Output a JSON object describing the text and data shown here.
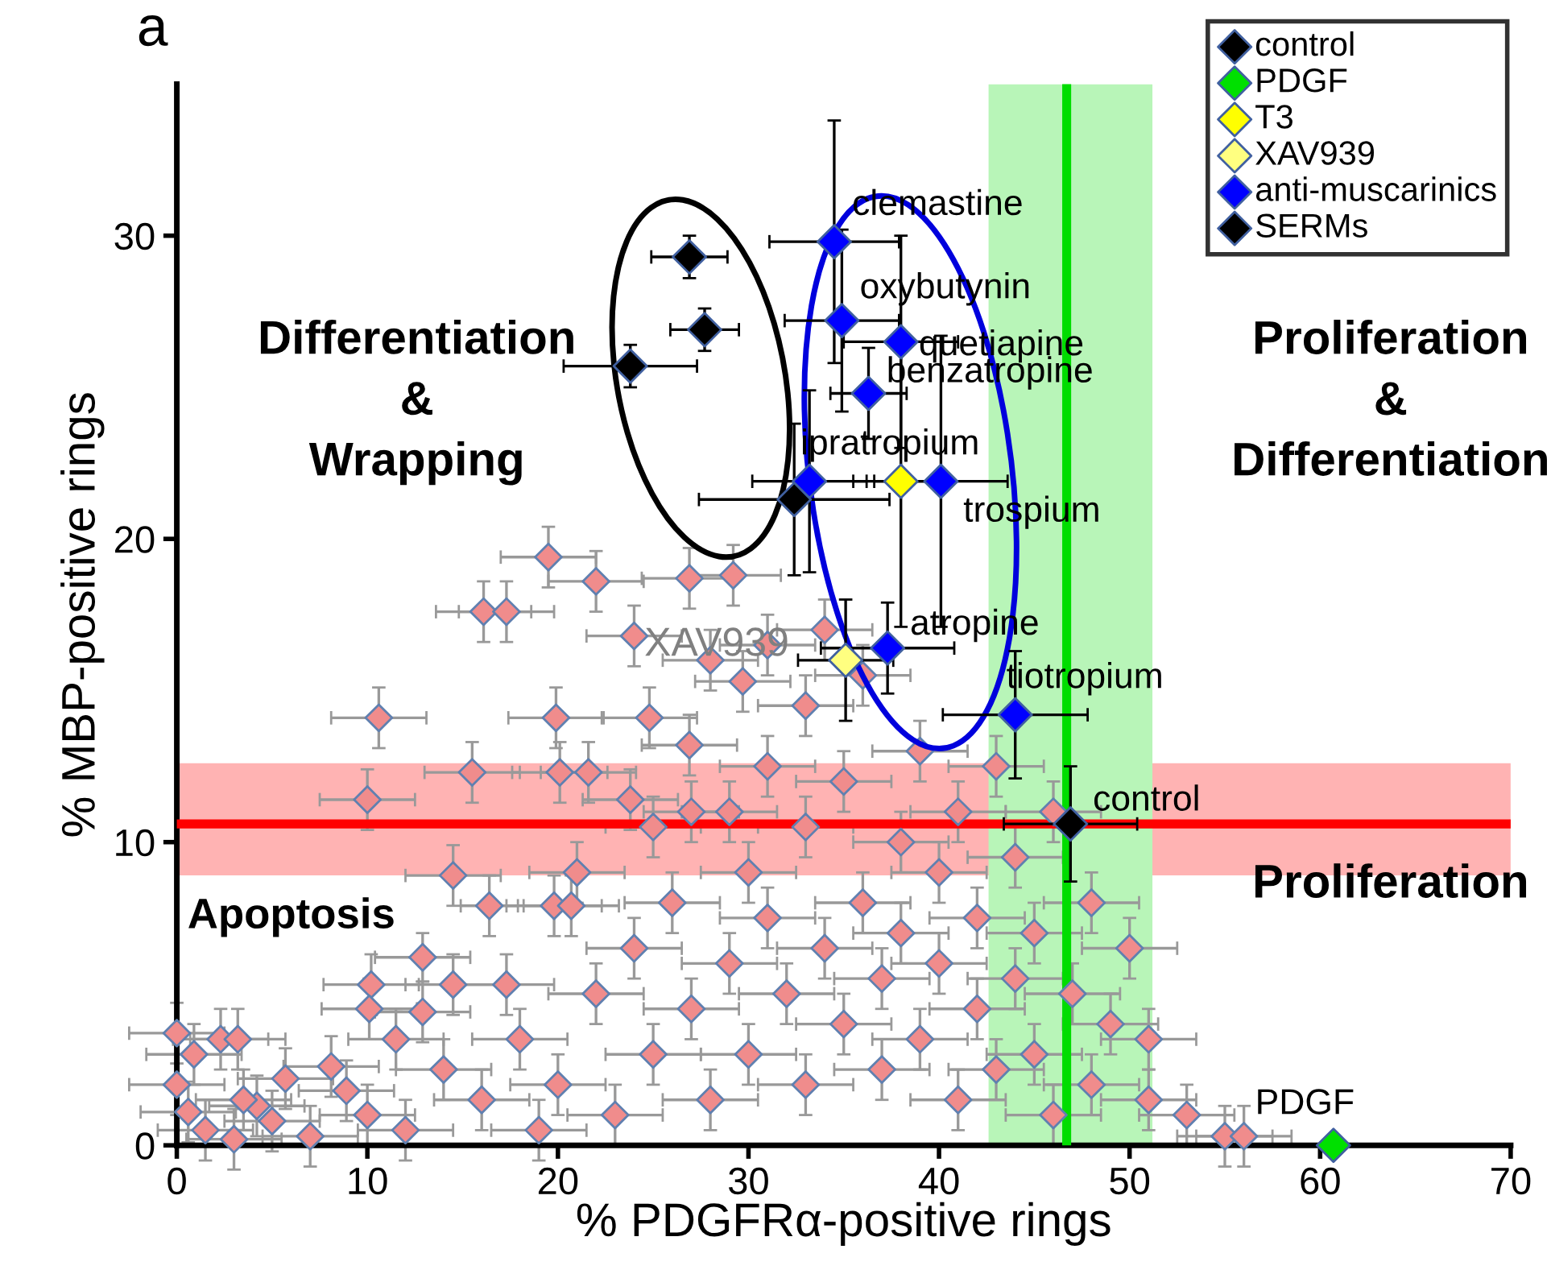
{
  "chart_data": {
    "type": "scatter",
    "xlabel": "% PDGFRα-positive rings",
    "ylabel": "% MBP-positive rings",
    "xlim": [
      0,
      70
    ],
    "xticks": [
      0,
      10,
      20,
      30,
      40,
      50,
      60,
      70
    ],
    "ylim": [
      0,
      35
    ],
    "yticks": [
      0,
      10,
      20,
      30
    ],
    "grid": false,
    "legend": "top right",
    "marker": "diamond",
    "series": [
      {
        "color": "#f08c8c",
        "x": [
          10.6,
          19.9,
          24.8,
          10.0,
          15.5,
          20.1,
          21.6,
          23.8,
          14.5,
          26.9,
          29.7,
          16.4,
          19.8,
          20.7,
          12.9,
          10.2,
          14.5,
          17.3,
          10.1,
          12.9,
          11.5,
          2.3,
          3.2,
          0.9,
          0,
          5.7,
          8.1,
          8.9,
          4.2,
          3.5,
          0.6,
          1.5,
          0,
          19.5,
          16.1,
          17.3,
          26.9,
          29.2,
          22,
          24,
          25,
          26,
          27,
          28,
          29,
          30,
          30,
          31,
          32,
          33,
          33,
          34,
          35,
          35,
          36,
          37,
          37,
          38,
          38,
          39,
          39,
          40,
          40,
          41,
          41,
          42,
          42,
          43,
          43,
          44,
          44,
          45,
          45,
          46,
          46,
          47,
          48,
          48,
          49,
          50,
          51,
          51,
          53,
          55,
          56,
          20,
          21,
          23,
          18,
          19,
          16,
          14,
          12,
          10,
          7,
          5,
          3,
          29,
          31,
          27,
          25,
          33,
          36,
          31,
          28,
          34,
          24,
          22
        ],
        "values": [
          14.1,
          14.1,
          14.1,
          11.4,
          12.3,
          12.3,
          12.3,
          11.4,
          8.9,
          13.2,
          15.3,
          7.9,
          7.9,
          7.9,
          6.2,
          5.3,
          5.3,
          5.3,
          4.5,
          4.4,
          3.5,
          3.5,
          3.5,
          3.0,
          3.7,
          2.2,
          2.6,
          1.8,
          1.3,
          1.5,
          1.1,
          0.5,
          2.0,
          19.4,
          17.6,
          17.6,
          18.7,
          18.8,
          5,
          6.5,
          3,
          8,
          4.5,
          1.5,
          6,
          9,
          3,
          7.5,
          5,
          2,
          10.5,
          6.5,
          4,
          12,
          8,
          2.5,
          5.5,
          10,
          7,
          3.5,
          13,
          6,
          9,
          1.5,
          11,
          4.5,
          7.5,
          12.5,
          2.5,
          9.5,
          5.5,
          3,
          7,
          11,
          1,
          5,
          8,
          2,
          4,
          6.5,
          1.5,
          3.5,
          1,
          0.3,
          0.3,
          2,
          9,
          1,
          3.5,
          0.5,
          1.5,
          2.5,
          0.5,
          1,
          0.3,
          0.8,
          0.2,
          11,
          12.5,
          11,
          10.5,
          14.5,
          15.5,
          16.5,
          16,
          17,
          16.8,
          18.6
        ],
        "errors": [
          1.0,
          1.0,
          1.0,
          1.0,
          1.0,
          1.0,
          1.0,
          1.0,
          1.0,
          1.0,
          1.0,
          1.0,
          1.0,
          1.0,
          0.8,
          1.0,
          1.0,
          1.0,
          1.0,
          1.0,
          1.0,
          1.0,
          1.0,
          1.0,
          1.0,
          1.0,
          1.0,
          1.0,
          1.0,
          1.0,
          1.0,
          1.0,
          1.0,
          1.0,
          1.0,
          1.0,
          1.0,
          1.0,
          1.0,
          1.0,
          1.0,
          1.0,
          1.0,
          1.0,
          1.0,
          1.0,
          1.0,
          1.0,
          1.0,
          1.0,
          1.0,
          1.0,
          1.0,
          1.0,
          1.0,
          1.0,
          1.0,
          1.0,
          1.0,
          1.0,
          1.0,
          1.0,
          1.0,
          1.0,
          1.0,
          1.0,
          1.0,
          1.0,
          1.0,
          1.0,
          1.0,
          1.0,
          1.0,
          1.0,
          1.0,
          1.0,
          1.0,
          1.0,
          1.0,
          1.0,
          1.0,
          1.0,
          1.0,
          1.0,
          1.0,
          1.0,
          1.0,
          1.0,
          1.0,
          1.0,
          1.0,
          1.0,
          1.0,
          1.0,
          1.0,
          1.0,
          1.0,
          1.0,
          1.0,
          1.0,
          1.0,
          1.0,
          1.0,
          1.0,
          1.0,
          1.0,
          1.0,
          1.0
        ],
        "xerrors": [
          2.5,
          2.5,
          2.5,
          2.5,
          2.5,
          2.5,
          2.5,
          2.5,
          2.5,
          2.5,
          2.5,
          1.5,
          2.5,
          2.5,
          2.5,
          2.5,
          2.5,
          2.5,
          2.5,
          2.5,
          2.5,
          2.5,
          2.5,
          2.5,
          2.5,
          2.5,
          2.5,
          2.5,
          2.5,
          2.5,
          2.5,
          2.5,
          2.5,
          2.5,
          2.5,
          2.5,
          2.5,
          2.5,
          2.5,
          2.5,
          2.5,
          2.5,
          2.5,
          2.5,
          2.5,
          2.5,
          2.5,
          2.5,
          2.5,
          2.5,
          2.5,
          2.5,
          2.5,
          2.5,
          2.5,
          2.5,
          2.5,
          2.5,
          2.5,
          2.5,
          2.5,
          2.5,
          2.5,
          2.5,
          2.5,
          2.5,
          2.5,
          2.5,
          2.5,
          2.5,
          2.5,
          2.5,
          2.5,
          2.5,
          2.5,
          2.5,
          2.5,
          2.5,
          2.5,
          2.5,
          2.5,
          2.5,
          2.5,
          2.5,
          2.5,
          2.5,
          2.5,
          2.5,
          2.5,
          2.5,
          2.5,
          2.5,
          2.5,
          2.5,
          2.5,
          2.5,
          2.5,
          2.5,
          2.5,
          2.5,
          2.5,
          2.5,
          2.5,
          2.5,
          2.5,
          2.5,
          2.5,
          2.5
        ]
      },
      {
        "name": "control",
        "color": "#000000",
        "x": [
          46.9
        ],
        "values": [
          10.6
        ],
        "errors": [
          1.9
        ],
        "xerrors": [
          3.5
        ]
      },
      {
        "name": "PDGF",
        "color": "#00e000",
        "x": [
          60.7
        ],
        "values": [
          0
        ]
      },
      {
        "name": "T3",
        "color": "#ffff00",
        "x": [
          38.0
        ],
        "values": [
          21.9
        ],
        "errors": [
          4.8
        ],
        "xerrors": [
          2.5
        ]
      },
      {
        "name": "XAV939",
        "color": "#ffff80",
        "x": [
          35.1
        ],
        "values": [
          16.0
        ],
        "errors": [
          2.0
        ],
        "xerrors": [
          2.5
        ]
      },
      {
        "name": "anti-muscarinics",
        "color": "#0000ff",
        "x": [
          34.5,
          34.9,
          38.0,
          36.3,
          33.2,
          40.1,
          37.3,
          44.0
        ],
        "values": [
          29.8,
          27.2,
          26.5,
          24.8,
          21.9,
          21.9,
          16.4,
          14.2
        ],
        "errors": [
          4.0,
          3.0,
          3.5,
          1.5,
          3.0,
          4.8,
          1.5,
          2.1
        ],
        "xerrors": [
          3.4,
          3.0,
          3.0,
          2.0,
          3.0,
          3.5,
          3.5,
          3.8
        ]
      },
      {
        "name": "SERMs",
        "color": "#000000",
        "x": [
          26.9,
          27.7,
          23.8,
          32.4
        ],
        "values": [
          29.3,
          26.9,
          25.7,
          21.3
        ],
        "errors": [
          0.7,
          0.7,
          0.7,
          2.5
        ],
        "xerrors": [
          2.0,
          1.8,
          3.5,
          5.0
        ]
      }
    ],
    "ref_lines": [
      {
        "axis": "y",
        "value": 10.6,
        "color": "#ff0000"
      },
      {
        "axis": "x",
        "value": 46.7,
        "color": "#00dd00"
      }
    ],
    "bands": [
      {
        "axis": "y",
        "from": 8.9,
        "to": 12.6,
        "color": "#ffb3b3"
      },
      {
        "axis": "x",
        "from": 42.6,
        "to": 51.2,
        "color": "#b8f5b8"
      }
    ],
    "annotations": [
      "a",
      "Differentiation\n&\nWrapping",
      "Proliferation\n&\nDifferentiation",
      "Apoptosis",
      "Proliferation",
      {
        "text": "clemastine",
        "x": 34.5,
        "y": 29.8
      },
      {
        "text": "oxybutynin",
        "x": 34.9,
        "y": 27.2
      },
      {
        "text": "quetiapine",
        "x": 38.0,
        "y": 26.5
      },
      {
        "text": "benzatropine",
        "x": 36.3,
        "y": 24.8
      },
      {
        "text": "ipratropium",
        "x": 33.2,
        "y": 21.9
      },
      {
        "text": "trospium",
        "x": 40.1,
        "y": 21.9
      },
      {
        "text": "atropine",
        "x": 37.3,
        "y": 16.4
      },
      {
        "text": "tiotropium",
        "x": 44.0,
        "y": 14.2
      },
      {
        "text": "control",
        "x": 46.9,
        "y": 10.6
      },
      {
        "text": "PDGF",
        "x": 60.7,
        "y": 0
      },
      {
        "text": "XAV939",
        "x": 35.1,
        "y": 16.0
      }
    ]
  }
}
